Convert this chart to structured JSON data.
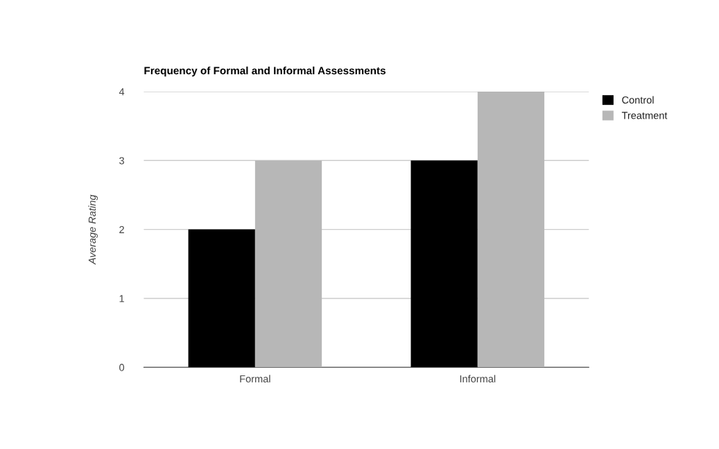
{
  "chart_data": {
    "type": "bar",
    "title": "Frequency of Formal and Informal Assessments",
    "ylabel": "Average Rating",
    "categories": [
      "Formal",
      "Informal"
    ],
    "series": [
      {
        "name": "Control",
        "color": "#000000",
        "values": [
          2,
          3
        ]
      },
      {
        "name": "Treatment",
        "color": "#b7b7b7",
        "values": [
          3,
          4
        ]
      }
    ],
    "ylim": [
      0,
      4
    ],
    "yticks": [
      0,
      1,
      2,
      3,
      4
    ],
    "grid": "y",
    "legend": "top right"
  }
}
